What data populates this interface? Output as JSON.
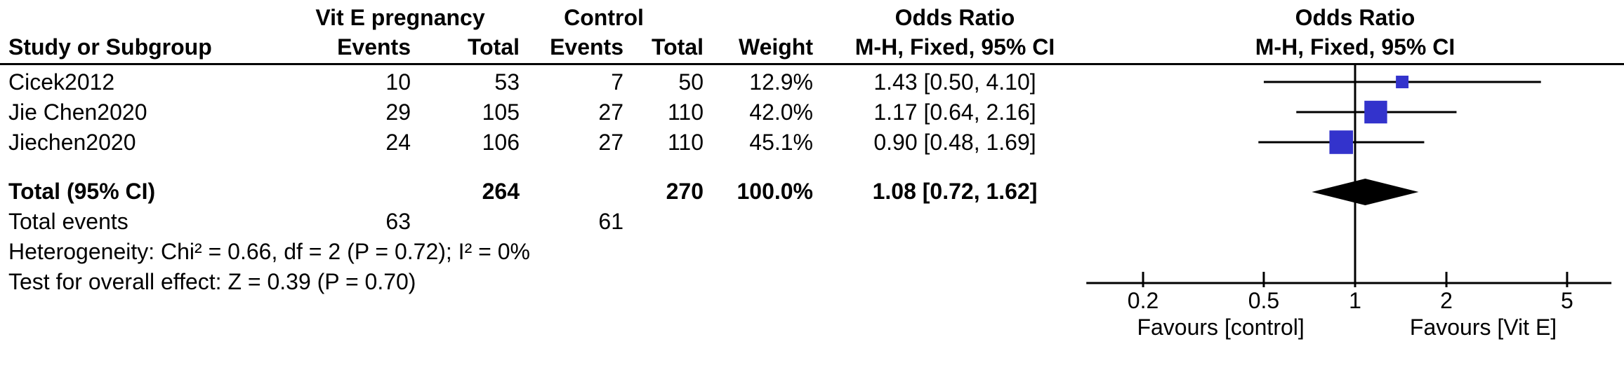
{
  "table": {
    "header": {
      "group1": "Vit E pregnancy",
      "group2": "Control",
      "or_col": "Odds Ratio",
      "or_plot": "Odds Ratio",
      "study": "Study or Subgroup",
      "events": "Events",
      "total": "Total",
      "weight": "Weight",
      "method": "M-H, Fixed, 95% CI"
    },
    "studies": [
      {
        "name": "Cicek2012",
        "events_e": "10",
        "total_e": "53",
        "events_c": "7",
        "total_c": "50",
        "weight": "12.9%",
        "ci": "1.43 [0.50, 4.10]"
      },
      {
        "name": "Jie Chen2020",
        "events_e": "29",
        "total_e": "105",
        "events_c": "27",
        "total_c": "110",
        "weight": "42.0%",
        "ci": "1.17 [0.64, 2.16]"
      },
      {
        "name": "Jiechen2020",
        "events_e": "24",
        "total_e": "106",
        "events_c": "27",
        "total_c": "110",
        "weight": "45.1%",
        "ci": "0.90 [0.48, 1.69]"
      }
    ],
    "total_row": {
      "label": "Total (95% CI)",
      "total_e": "264",
      "total_c": "270",
      "weight": "100.0%",
      "ci": "1.08 [0.72, 1.62]"
    },
    "total_events": {
      "label": "Total events",
      "events_e": "63",
      "events_c": "61"
    },
    "heterogeneity": "Heterogeneity: Chi² = 0.66, df = 2 (P = 0.72); I² = 0%",
    "overall_effect": "Test for overall effect: Z = 0.39 (P = 0.70)"
  },
  "chart_data": {
    "type": "forest",
    "scale": "log",
    "effect_measure": "Odds Ratio, M-H, Fixed, 95% CI",
    "axis_ticks": [
      0.2,
      0.5,
      1,
      2,
      5
    ],
    "axis_range": [
      0.13,
      7
    ],
    "null_line": 1,
    "xlabel_left": "Favours [control]",
    "xlabel_right": "Favours [Vit E]",
    "marker_color": "#3333CC",
    "line_color": "#000000",
    "studies": [
      {
        "name": "Cicek2012",
        "or": 1.43,
        "ci_low": 0.5,
        "ci_high": 4.1,
        "weight": 12.9
      },
      {
        "name": "Jie Chen2020",
        "or": 1.17,
        "ci_low": 0.64,
        "ci_high": 2.16,
        "weight": 42.0
      },
      {
        "name": "Jiechen2020",
        "or": 0.9,
        "ci_low": 0.48,
        "ci_high": 1.69,
        "weight": 45.1
      }
    ],
    "total": {
      "label": "Total (95% CI)",
      "or": 1.08,
      "ci_low": 0.72,
      "ci_high": 1.62,
      "weight": 100.0
    }
  }
}
